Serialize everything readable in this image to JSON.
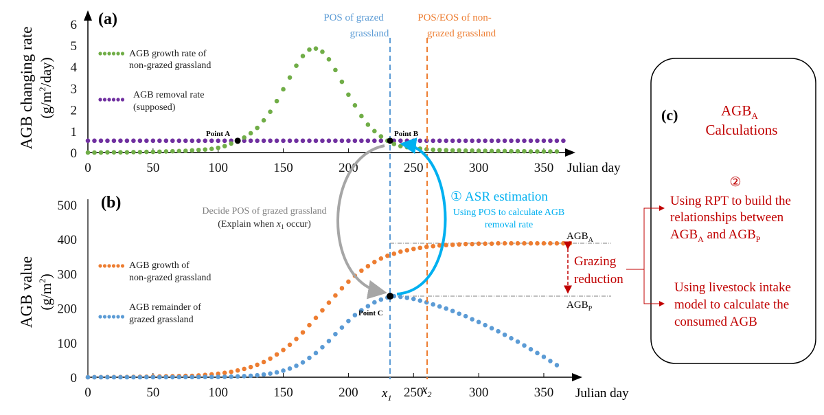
{
  "panel_a": {
    "label": "(a)",
    "ylabel_line1": "AGB changing rate",
    "ylabel_line2": "(g/m",
    "ylabel_sup": "2",
    "ylabel_line2_end": "/day)",
    "xlabel": "Julian day",
    "legend_green": [
      "AGB growth rate of",
      "non-grazed grassland"
    ],
    "legend_purple": [
      "AGB removal rate",
      "(supposed)"
    ],
    "point_a": "Point A",
    "point_b": "Point B",
    "pos_grazed": [
      "POS of grazed",
      "grassland"
    ],
    "pos_eos": [
      "POS/EOS of non-",
      "grazed grassland"
    ]
  },
  "panel_b": {
    "label": "(b)",
    "ylabel_line1": "AGB value",
    "ylabel_line2": "(g/m",
    "ylabel_sup": "2",
    "ylabel_line2_end": ")",
    "xlabel": "Julian day",
    "legend_orange": [
      "AGB growth of",
      "non-grazed grassland"
    ],
    "legend_blue": [
      "AGB remainder of",
      "grazed grassland"
    ],
    "point_c": "Point C",
    "x1": "x",
    "x1_sub": "1",
    "x2": "x",
    "x2_sub": "2",
    "agb_a": "AGB",
    "agb_a_sub": "A",
    "agb_p": "AGB",
    "agb_p_sub": "P",
    "grazing_reduction": [
      "Grazing",
      "reduction"
    ]
  },
  "annotations": {
    "asr_num": "①",
    "asr_title": "ASR estimation",
    "asr_desc": [
      "Using POS to calculate AGB",
      "removal rate"
    ],
    "decide": [
      "Decide POS of grazed grassland"
    ],
    "explain_pre": "(Explain when ",
    "explain_x": "x",
    "explain_sub": "1",
    "explain_post": " occur)"
  },
  "panel_c": {
    "label": "(c)",
    "title_agb": "AGB",
    "title_sub": "A",
    "title_calc": "Calculations",
    "step_num": "②",
    "rpt": [
      "Using RPT to build the",
      "relationships between"
    ],
    "rpt_line3_a": "AGB",
    "rpt_line3_a_sub": "A",
    "rpt_line3_mid": " and AGB",
    "rpt_line3_p_sub": "P",
    "intake": [
      "Using livestock intake",
      "model to calculate the",
      "consumed AGB"
    ]
  },
  "colors": {
    "green": "#70ad47",
    "purple": "#7030a0",
    "orange": "#ed7d31",
    "blue": "#5b9bd5",
    "cyan": "#00b0f0",
    "red": "#c00000",
    "grey": "#a6a6a6"
  },
  "chart_data": [
    {
      "type": "scatter",
      "title": "(a)",
      "xlabel": "Julian day",
      "ylabel": "AGB changing rate (g/m2/day)",
      "xlim": [
        0,
        370
      ],
      "ylim": [
        0,
        6
      ],
      "xticks": [
        0,
        50,
        100,
        150,
        200,
        250,
        300,
        350
      ],
      "yticks": [
        0,
        1,
        2,
        3,
        4,
        5,
        6
      ],
      "series": [
        {
          "name": "AGB growth rate of non-grazed grassland",
          "x_start": 0,
          "x_step": 5,
          "values": [
            0,
            0,
            0,
            0.01,
            0.01,
            0.01,
            0.01,
            0.02,
            0.02,
            0.03,
            0.03,
            0.04,
            0.05,
            0.06,
            0.07,
            0.08,
            0.1,
            0.12,
            0.14,
            0.17,
            0.22,
            0.3,
            0.42,
            0.55,
            0.7,
            0.9,
            1.15,
            1.5,
            1.9,
            2.4,
            2.95,
            3.5,
            4.05,
            4.5,
            4.8,
            4.85,
            4.7,
            4.35,
            3.85,
            3.3,
            2.7,
            2.2,
            1.7,
            1.3,
            1.0,
            0.75,
            0.55,
            0.4,
            0.3,
            0.25,
            0.2,
            0.18,
            0.15,
            0.13,
            0.12,
            0.11,
            0.1,
            0.1,
            0.09,
            0.09,
            0.08,
            0.08,
            0.07,
            0.07,
            0.07,
            0.06,
            0.06,
            0.06,
            0.05,
            0.05,
            0.05,
            0.05,
            0.05
          ]
        },
        {
          "name": "AGB removal rate (supposed)",
          "x_start": 0,
          "x_step": 5,
          "values": [
            0.55,
            0.55,
            0.55,
            0.55,
            0.55,
            0.55,
            0.55,
            0.55,
            0.55,
            0.55,
            0.55,
            0.55,
            0.55,
            0.55,
            0.55,
            0.55,
            0.55,
            0.55,
            0.55,
            0.55,
            0.55,
            0.55,
            0.55,
            0.55,
            0.55,
            0.55,
            0.55,
            0.55,
            0.55,
            0.55,
            0.55,
            0.55,
            0.55,
            0.55,
            0.55,
            0.55,
            0.55,
            0.55,
            0.55,
            0.55,
            0.55,
            0.55,
            0.55,
            0.55,
            0.55,
            0.55,
            0.55,
            0.55,
            0.55,
            0.55,
            0.55,
            0.55,
            0.55,
            0.55,
            0.55,
            0.55,
            0.55,
            0.55,
            0.55,
            0.55,
            0.55,
            0.55,
            0.55,
            0.55,
            0.55,
            0.55,
            0.55,
            0.55,
            0.55,
            0.55,
            0.55,
            0.55,
            0.55,
            0.55
          ]
        }
      ],
      "points": [
        {
          "name": "Point A",
          "x": 115,
          "y": 0.55
        },
        {
          "name": "Point B",
          "x": 232,
          "y": 0.55
        }
      ],
      "vlines": [
        {
          "name": "POS of grazed grassland",
          "x": 232
        },
        {
          "name": "POS/EOS of non-grazed grassland",
          "x": 260
        }
      ]
    },
    {
      "type": "scatter",
      "title": "(b)",
      "xlabel": "Julian day",
      "ylabel": "AGB value (g/m2)",
      "xlim": [
        0,
        370
      ],
      "ylim": [
        0,
        500
      ],
      "xticks": [
        0,
        50,
        100,
        150,
        200,
        250,
        300,
        350
      ],
      "yticks": [
        0,
        100,
        200,
        300,
        400,
        500
      ],
      "series": [
        {
          "name": "AGB growth of non-grazed grassland",
          "x_start": 0,
          "x_step": 5,
          "values": [
            0.1,
            0.1,
            0.2,
            0.3,
            0.4,
            0.5,
            0.6,
            0.8,
            1.1,
            1.4,
            1.8,
            2.2,
            2.6,
            3.0,
            3.5,
            3.8,
            4,
            5.2,
            6.6,
            8.3,
            10,
            12.5,
            15.5,
            19.5,
            24,
            29.5,
            36,
            44,
            54,
            66,
            79,
            94,
            111,
            130,
            151,
            172,
            194,
            216,
            237,
            258,
            277,
            294,
            309,
            322,
            334,
            344,
            352,
            358,
            364,
            368,
            372,
            375,
            378,
            380,
            382,
            383,
            384,
            385,
            386,
            386,
            387,
            387,
            387,
            388,
            388,
            388,
            388,
            388,
            388,
            388,
            388,
            388,
            388,
            388,
            388
          ]
        },
        {
          "name": "AGB remainder of grazed grassland",
          "x_start": 0,
          "x_step": 5,
          "values": [
            0,
            0,
            0,
            0,
            0,
            0,
            0,
            0,
            0,
            0.1,
            0.1,
            0.1,
            0.2,
            0.2,
            0.3,
            0.3,
            0.4,
            0.5,
            0.6,
            0.7,
            0.9,
            1.2,
            1.6,
            2.3,
            3.1,
            4.2,
            5.7,
            7.8,
            10.5,
            14,
            19,
            25,
            33,
            43,
            56,
            70,
            87,
            105,
            125,
            144,
            163,
            180,
            194,
            206,
            217,
            225,
            231,
            235,
            233,
            230,
            227,
            222,
            217,
            211,
            205,
            199,
            192,
            184,
            177,
            168,
            160,
            151,
            142,
            133,
            123,
            113,
            103,
            92,
            81,
            70,
            59,
            47,
            35
          ]
        }
      ],
      "points": [
        {
          "name": "Point C",
          "x": 232,
          "y": 235
        }
      ],
      "hlines": [
        {
          "name": "AGBA",
          "y": 388
        },
        {
          "name": "AGBP",
          "y": 235
        }
      ],
      "vlines": [
        {
          "name": "x1",
          "x": 232
        },
        {
          "name": "x2",
          "x": 260
        }
      ]
    }
  ]
}
